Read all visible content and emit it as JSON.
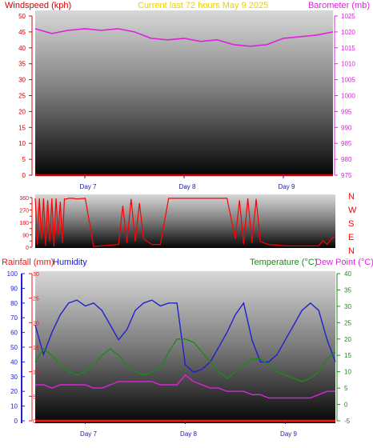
{
  "header": {
    "left_title": "Windspeed (kph)",
    "center_title": "Current last 72 hours May 9 2025",
    "right_title": "Barometer (mb)"
  },
  "colors": {
    "windspeed": "#d40000",
    "barometer": "#e020e0",
    "title_center": "#e8d000",
    "rain": "#ff1010",
    "humidity": "#2020d0",
    "temperature": "#1a8a1a",
    "dewpoint": "#e020e0",
    "direction": "#ff0000"
  },
  "chart_data": [
    {
      "type": "line",
      "title": "Current last 72 hours May 9 2025",
      "ylabel": "Windspeed (kph)",
      "ylabel_right": "Barometer (mb)",
      "x_ticks": [
        "Day 7",
        "Day 8",
        "Day 9"
      ],
      "x_range_hours": [
        0,
        72
      ],
      "ylim": [
        0,
        50
      ],
      "y_ticks": [
        0,
        5,
        10,
        15,
        20,
        25,
        30,
        35,
        40,
        45,
        50
      ],
      "ylim_right": [
        975,
        1025
      ],
      "y_ticks_right": [
        975,
        980,
        985,
        990,
        995,
        1000,
        1005,
        1010,
        1015,
        1020,
        1025
      ],
      "series": [
        {
          "name": "Barometer (mb)",
          "axis": "right",
          "x": [
            0,
            4,
            8,
            12,
            16,
            20,
            24,
            28,
            32,
            36,
            40,
            44,
            48,
            52,
            56,
            60,
            64,
            68,
            72
          ],
          "values": [
            1021,
            1019.5,
            1020.5,
            1021,
            1020.5,
            1021,
            1020,
            1018,
            1017.5,
            1018,
            1017,
            1017.5,
            1016,
            1015.5,
            1016,
            1018,
            1018.5,
            1019,
            1020
          ]
        },
        {
          "name": "Windspeed (kph)",
          "axis": "left",
          "x": [
            0,
            72
          ],
          "values": [
            0,
            0
          ]
        }
      ]
    },
    {
      "type": "line",
      "ylabel": "Wind direction",
      "ylim": [
        0,
        360
      ],
      "y_ticks": [
        0,
        45,
        90,
        135,
        180,
        225,
        270,
        315,
        360
      ],
      "y_ticks_right": [
        "N",
        "W",
        "S",
        "E",
        "N"
      ],
      "series": [
        {
          "name": "Wind direction",
          "x": [
            0,
            0.5,
            1,
            1.5,
            2,
            2.5,
            3,
            3.5,
            4,
            4.5,
            5,
            5.5,
            6,
            6.5,
            7,
            7.5,
            8,
            9,
            10,
            12,
            14,
            16,
            18,
            20,
            21,
            22,
            23,
            24,
            25,
            26,
            28,
            30,
            32,
            34,
            36,
            38,
            40,
            42,
            44,
            46,
            48,
            49,
            50,
            51,
            52,
            53,
            54,
            56,
            58,
            60,
            62,
            64,
            66,
            68,
            69,
            70,
            71,
            72
          ],
          "values": [
            355,
            20,
            355,
            60,
            355,
            10,
            340,
            40,
            355,
            5,
            355,
            90,
            330,
            30,
            350,
            350,
            355,
            355,
            350,
            355,
            5,
            10,
            15,
            20,
            300,
            30,
            350,
            40,
            320,
            60,
            20,
            20,
            355,
            355,
            355,
            355,
            355,
            355,
            355,
            355,
            60,
            340,
            20,
            355,
            30,
            350,
            40,
            20,
            15,
            10,
            10,
            10,
            10,
            10,
            50,
            20,
            60,
            80
          ]
        }
      ]
    },
    {
      "type": "line",
      "ylabel": "Rainfall (mm)",
      "ylabel_secondary": "Humidity",
      "ylabel_right": "Temperature (°C)",
      "ylabel_right_secondary": "Dew Point (°C)",
      "x_ticks": [
        "Day 7",
        "Day 8",
        "Day 9"
      ],
      "x_range_hours": [
        0,
        72
      ],
      "ylim_humidity": [
        0,
        100
      ],
      "y_ticks_humidity": [
        0,
        10,
        20,
        30,
        40,
        50,
        60,
        70,
        80,
        90,
        100
      ],
      "ylim_rain": [
        0,
        30
      ],
      "y_ticks_rain": [
        0,
        5,
        10,
        15,
        20,
        25,
        30
      ],
      "ylim_temp": [
        -5,
        40
      ],
      "y_ticks_temp": [
        -5,
        0,
        5,
        10,
        15,
        20,
        25,
        30,
        35,
        40
      ],
      "series": [
        {
          "name": "Humidity",
          "axis": "humidity",
          "x": [
            0,
            2,
            4,
            6,
            8,
            10,
            12,
            14,
            16,
            18,
            20,
            22,
            24,
            26,
            28,
            30,
            32,
            34,
            36,
            38,
            40,
            42,
            44,
            46,
            48,
            50,
            52,
            54,
            56,
            58,
            60,
            62,
            64,
            66,
            68,
            70,
            72
          ],
          "values": [
            65,
            45,
            60,
            72,
            80,
            82,
            78,
            80,
            75,
            65,
            55,
            62,
            75,
            80,
            82,
            78,
            80,
            80,
            38,
            33,
            35,
            40,
            50,
            60,
            72,
            80,
            55,
            40,
            40,
            45,
            55,
            65,
            75,
            80,
            75,
            55,
            40
          ]
        },
        {
          "name": "Temperature (°C)",
          "axis": "temp",
          "x": [
            0,
            2,
            4,
            6,
            8,
            10,
            12,
            14,
            16,
            18,
            20,
            22,
            24,
            26,
            28,
            30,
            32,
            34,
            36,
            38,
            40,
            42,
            44,
            46,
            48,
            50,
            52,
            54,
            56,
            58,
            60,
            62,
            64,
            66,
            68,
            70,
            72
          ],
          "values": [
            13,
            17,
            15,
            12,
            10,
            9,
            10,
            12,
            15,
            17,
            15,
            12,
            10,
            9,
            10,
            11,
            16,
            20,
            20,
            19,
            16,
            13,
            10,
            8,
            10,
            12,
            14,
            14,
            12,
            10,
            9,
            8,
            7,
            8,
            10,
            14,
            16
          ]
        },
        {
          "name": "Dew Point (°C)",
          "axis": "temp",
          "x": [
            0,
            2,
            4,
            6,
            8,
            10,
            12,
            14,
            16,
            18,
            20,
            22,
            24,
            26,
            28,
            30,
            32,
            34,
            36,
            38,
            40,
            42,
            44,
            46,
            48,
            50,
            52,
            54,
            56,
            58,
            60,
            62,
            64,
            66,
            68,
            70,
            72
          ],
          "values": [
            6,
            6,
            5,
            6,
            6,
            6,
            6,
            5,
            5,
            6,
            7,
            7,
            7,
            7,
            7,
            6,
            6,
            6,
            9,
            7,
            6,
            5,
            5,
            4,
            4,
            4,
            3,
            3,
            2,
            2,
            2,
            2,
            2,
            2,
            3,
            4,
            4
          ]
        },
        {
          "name": "Rainfall (mm)",
          "axis": "rain",
          "x": [
            0,
            72
          ],
          "values": [
            0,
            0
          ]
        }
      ]
    }
  ]
}
